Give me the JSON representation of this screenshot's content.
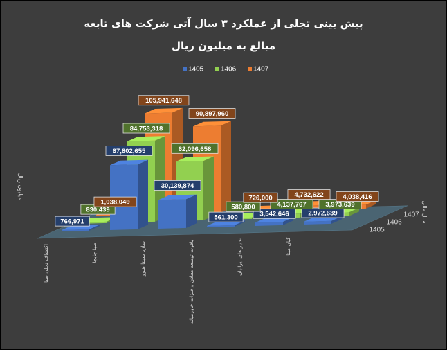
{
  "chart_data": {
    "type": "bar",
    "title": "پیش بینی تجلی از عملکرد ۳ سال آتی شرکت های تابعه",
    "subtitle": "مبالغ به میلیون ریال",
    "ylabel": "میلیون ریال",
    "depth_axis_label": "سال مالی",
    "categories": [
      "اکتشاف تجلی صبا",
      "صبا جابجا",
      "سازه سپنتا هیوو",
      "یاقوت توسعه معادن و فلزات خاورمیانه",
      "تدبیر های ایرانیان",
      "کیان مبنا"
    ],
    "series": [
      {
        "name": "1405",
        "color": "#4472c4",
        "values": [
          766971,
          67802655,
          30139874,
          561300,
          3542646,
          2972639
        ]
      },
      {
        "name": "1406",
        "color": "#92d050",
        "values": [
          830439,
          84753318,
          62096658,
          580800,
          4137767,
          3973639
        ]
      },
      {
        "name": "1407",
        "color": "#ed7d31",
        "values": [
          1038049,
          105941648,
          90897960,
          726000,
          4732622,
          4038416
        ]
      }
    ],
    "data_labels": {
      "1405": [
        "766,971",
        "67,802,655",
        "30,139,874",
        "561,300",
        "3,542,646",
        "2,972,639"
      ],
      "1406": [
        "830,439",
        "84,753,318",
        "62,096,658",
        "580,800",
        "4,137,767",
        "3,973,639"
      ],
      "1407": [
        "1,038,049",
        "105,941,648",
        "90,897,960",
        "726,000",
        "4,732,622",
        "4,038,416"
      ]
    },
    "depth_ticks": [
      "1405",
      "1406",
      "1407"
    ],
    "legend": [
      "1405",
      "1406",
      "1407"
    ],
    "legend_position": "top-right",
    "grid": false
  }
}
